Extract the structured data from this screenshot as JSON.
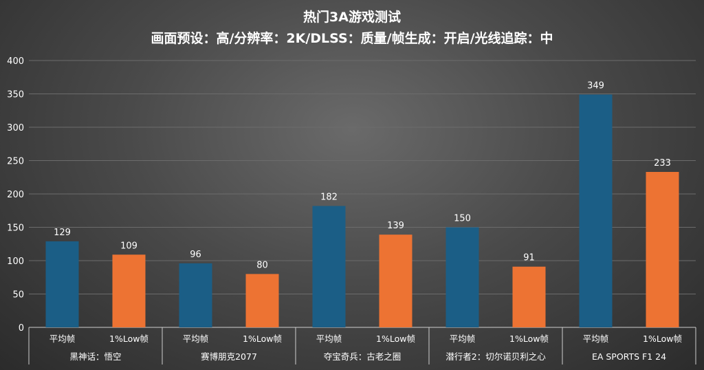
{
  "chart_data": {
    "type": "bar",
    "title": "热门3A游戏测试",
    "subtitle": "画面预设：高/分辨率：2K/DLSS：质量/帧生成：开启/光线追踪：中",
    "groups": [
      "黑神话：悟空",
      "赛博朋克2077",
      "夺宝奇兵：古老之圈",
      "潜行者2：切尔诺贝利之心",
      "EA SPORTS F1 24"
    ],
    "metrics": [
      "平均帧",
      "1%Low帧"
    ],
    "values": [
      [
        129,
        109
      ],
      [
        96,
        80
      ],
      [
        182,
        139
      ],
      [
        150,
        91
      ],
      [
        349,
        233
      ]
    ],
    "colors": {
      "平均帧": "#1b5e86",
      "1%Low帧": "#ed7333"
    },
    "ylim": [
      0,
      400
    ],
    "yticks": [
      0,
      50,
      100,
      150,
      200,
      250,
      300,
      350,
      400
    ],
    "grid": true,
    "legend": "none"
  }
}
